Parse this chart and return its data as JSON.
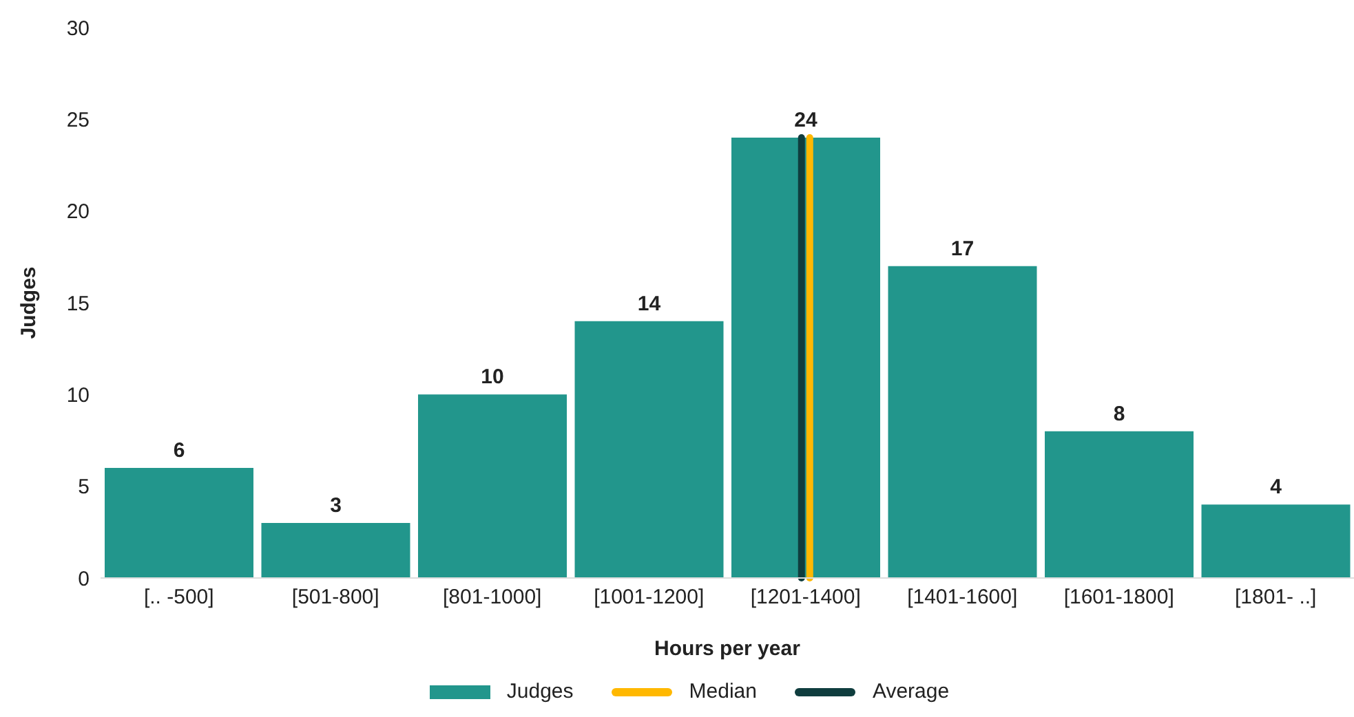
{
  "chart_data": {
    "type": "bar",
    "xlabel": "Hours per year",
    "ylabel": "Judges",
    "categories": [
      "[.. -500]",
      "[501-800]",
      "[801-1000]",
      "[1001-1200]",
      "[1201-1400]",
      "[1401-1600]",
      "[1601-1800]",
      "[1801- ..]"
    ],
    "series": [
      {
        "name": "Judges",
        "color": "#22968c",
        "values": [
          6,
          3,
          10,
          14,
          24,
          17,
          8,
          4
        ]
      }
    ],
    "ylim": [
      0,
      30
    ],
    "yticks": [
      0,
      5,
      10,
      15,
      20,
      25,
      30
    ],
    "ref_lines": [
      {
        "axis": "x",
        "value": "[1201-1400]",
        "label": "Median",
        "color": "#ffb800"
      },
      {
        "axis": "x",
        "value": "[1201-1400]",
        "label": "Average",
        "color": "#0f3d3e"
      }
    ],
    "data_labels": true,
    "grid": false,
    "legend": "bottom"
  }
}
